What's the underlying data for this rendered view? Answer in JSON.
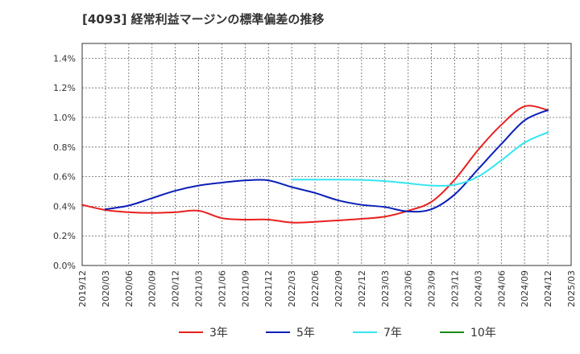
{
  "chart_data": {
    "type": "line",
    "title": "[4093]  経常利益マージンの標準偏差の推移",
    "xlabel": "",
    "ylabel": "",
    "x_ticks": [
      "2019/12",
      "2020/03",
      "2020/06",
      "2020/09",
      "2020/12",
      "2021/03",
      "2021/06",
      "2021/09",
      "2021/12",
      "2022/03",
      "2022/06",
      "2022/09",
      "2022/12",
      "2023/03",
      "2023/06",
      "2023/09",
      "2023/12",
      "2024/03",
      "2024/06",
      "2024/09",
      "2024/12",
      "2025/03"
    ],
    "y_ticks": [
      "0.0%",
      "0.2%",
      "0.4%",
      "0.6%",
      "0.8%",
      "1.0%",
      "1.2%",
      "1.4%"
    ],
    "ylim": [
      0,
      1.5
    ],
    "grid": true,
    "legend_position": "bottom",
    "series": [
      {
        "name": "3年",
        "color": "#e8201e",
        "x": [
          "2019/12",
          "2020/03",
          "2020/06",
          "2020/09",
          "2020/12",
          "2021/03",
          "2021/06",
          "2021/09",
          "2021/12",
          "2022/03",
          "2022/06",
          "2022/09",
          "2022/12",
          "2023/03",
          "2023/06",
          "2023/09",
          "2023/12",
          "2024/03",
          "2024/06",
          "2024/09",
          "2024/12"
        ],
        "values": [
          0.41,
          0.375,
          0.36,
          0.355,
          0.36,
          0.37,
          0.32,
          0.31,
          0.31,
          0.29,
          0.295,
          0.305,
          0.315,
          0.33,
          0.37,
          0.43,
          0.58,
          0.78,
          0.95,
          1.075,
          1.05
        ]
      },
      {
        "name": "5年",
        "color": "#0a1fb8",
        "x": [
          "2020/03",
          "2020/06",
          "2020/09",
          "2020/12",
          "2021/03",
          "2021/06",
          "2021/09",
          "2021/12",
          "2022/03",
          "2022/06",
          "2022/09",
          "2022/12",
          "2023/03",
          "2023/06",
          "2023/09",
          "2023/12",
          "2024/03",
          "2024/06",
          "2024/09",
          "2024/12"
        ],
        "values": [
          0.38,
          0.405,
          0.455,
          0.505,
          0.54,
          0.56,
          0.575,
          0.575,
          0.53,
          0.49,
          0.44,
          0.41,
          0.395,
          0.365,
          0.38,
          0.48,
          0.65,
          0.82,
          0.98,
          1.05
        ]
      },
      {
        "name": "7年",
        "color": "#33e5f0",
        "x": [
          "2022/03",
          "2022/06",
          "2022/09",
          "2022/12",
          "2023/03",
          "2023/06",
          "2023/09",
          "2023/12",
          "2024/03",
          "2024/06",
          "2024/09",
          "2024/12"
        ],
        "values": [
          0.58,
          0.58,
          0.58,
          0.578,
          0.57,
          0.555,
          0.54,
          0.545,
          0.6,
          0.71,
          0.83,
          0.9
        ]
      },
      {
        "name": "10年",
        "color": "#1a8a1a",
        "x": [],
        "values": []
      }
    ]
  }
}
